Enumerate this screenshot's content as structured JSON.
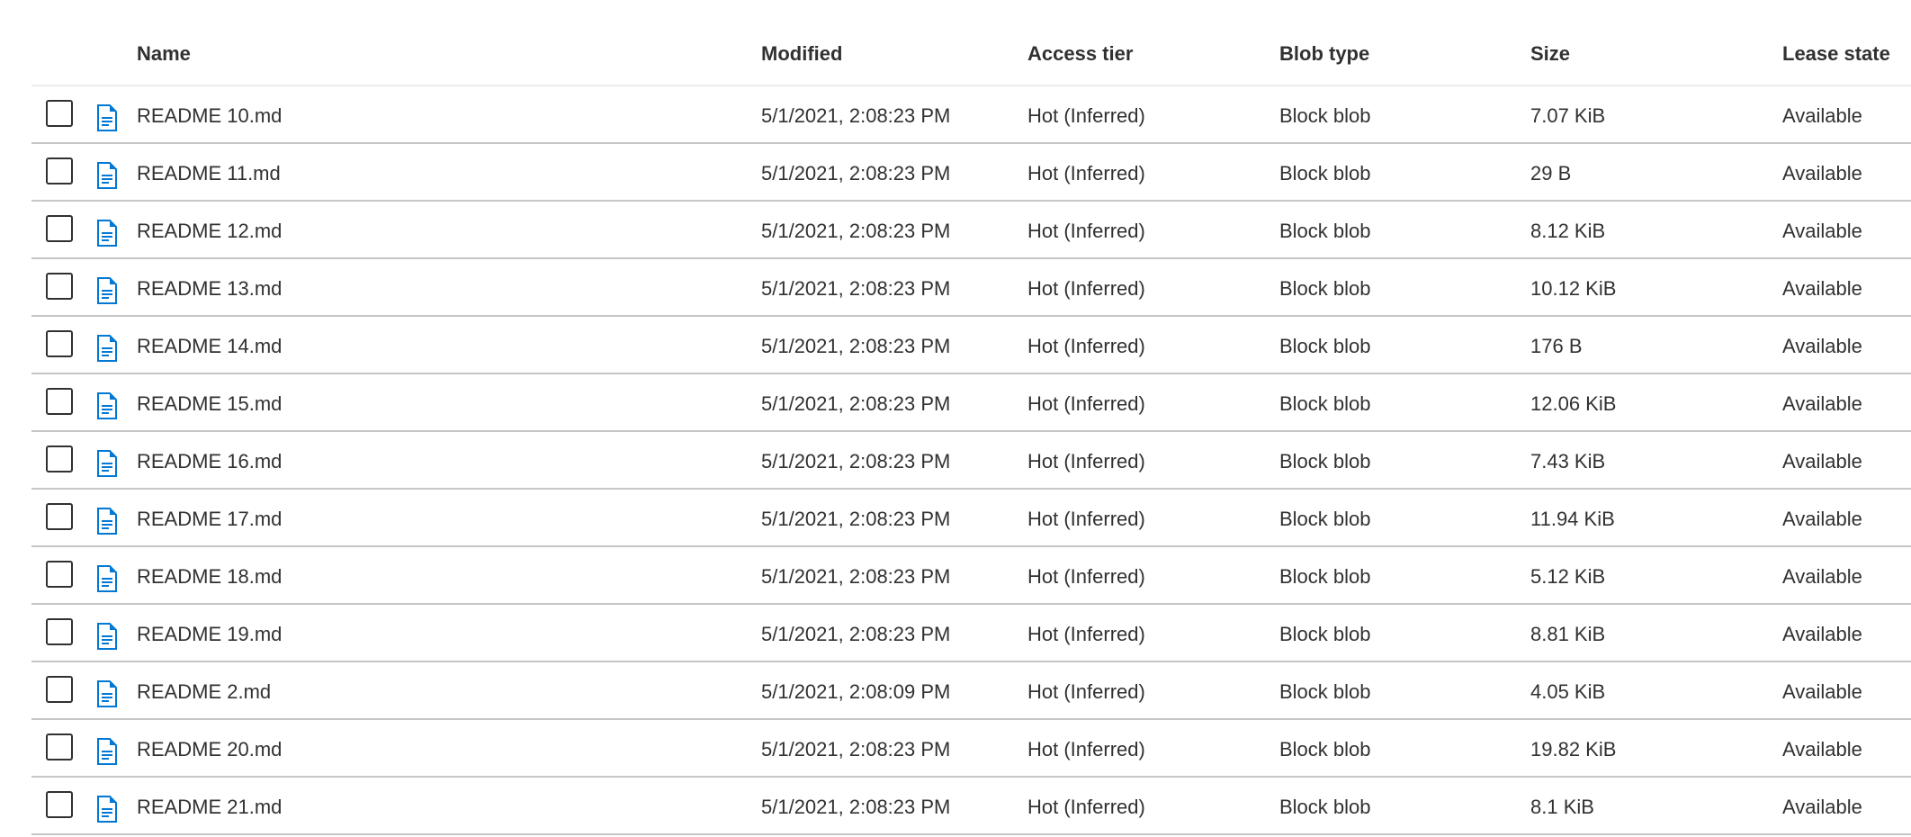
{
  "columns": {
    "name": "Name",
    "modified": "Modified",
    "access_tier": "Access tier",
    "blob_type": "Blob type",
    "size": "Size",
    "lease_state": "Lease state"
  },
  "accent_color": "#0078d4",
  "rows": [
    {
      "name": "README 10.md",
      "modified": "5/1/2021, 2:08:23 PM",
      "access_tier": "Hot (Inferred)",
      "blob_type": "Block blob",
      "size": "7.07 KiB",
      "lease_state": "Available"
    },
    {
      "name": "README 11.md",
      "modified": "5/1/2021, 2:08:23 PM",
      "access_tier": "Hot (Inferred)",
      "blob_type": "Block blob",
      "size": "29 B",
      "lease_state": "Available"
    },
    {
      "name": "README 12.md",
      "modified": "5/1/2021, 2:08:23 PM",
      "access_tier": "Hot (Inferred)",
      "blob_type": "Block blob",
      "size": "8.12 KiB",
      "lease_state": "Available"
    },
    {
      "name": "README 13.md",
      "modified": "5/1/2021, 2:08:23 PM",
      "access_tier": "Hot (Inferred)",
      "blob_type": "Block blob",
      "size": "10.12 KiB",
      "lease_state": "Available"
    },
    {
      "name": "README 14.md",
      "modified": "5/1/2021, 2:08:23 PM",
      "access_tier": "Hot (Inferred)",
      "blob_type": "Block blob",
      "size": "176 B",
      "lease_state": "Available"
    },
    {
      "name": "README 15.md",
      "modified": "5/1/2021, 2:08:23 PM",
      "access_tier": "Hot (Inferred)",
      "blob_type": "Block blob",
      "size": "12.06 KiB",
      "lease_state": "Available"
    },
    {
      "name": "README 16.md",
      "modified": "5/1/2021, 2:08:23 PM",
      "access_tier": "Hot (Inferred)",
      "blob_type": "Block blob",
      "size": "7.43 KiB",
      "lease_state": "Available"
    },
    {
      "name": "README 17.md",
      "modified": "5/1/2021, 2:08:23 PM",
      "access_tier": "Hot (Inferred)",
      "blob_type": "Block blob",
      "size": "11.94 KiB",
      "lease_state": "Available"
    },
    {
      "name": "README 18.md",
      "modified": "5/1/2021, 2:08:23 PM",
      "access_tier": "Hot (Inferred)",
      "blob_type": "Block blob",
      "size": "5.12 KiB",
      "lease_state": "Available"
    },
    {
      "name": "README 19.md",
      "modified": "5/1/2021, 2:08:23 PM",
      "access_tier": "Hot (Inferred)",
      "blob_type": "Block blob",
      "size": "8.81 KiB",
      "lease_state": "Available"
    },
    {
      "name": "README 2.md",
      "modified": "5/1/2021, 2:08:09 PM",
      "access_tier": "Hot (Inferred)",
      "blob_type": "Block blob",
      "size": "4.05 KiB",
      "lease_state": "Available"
    },
    {
      "name": "README 20.md",
      "modified": "5/1/2021, 2:08:23 PM",
      "access_tier": "Hot (Inferred)",
      "blob_type": "Block blob",
      "size": "19.82 KiB",
      "lease_state": "Available"
    },
    {
      "name": "README 21.md",
      "modified": "5/1/2021, 2:08:23 PM",
      "access_tier": "Hot (Inferred)",
      "blob_type": "Block blob",
      "size": "8.1 KiB",
      "lease_state": "Available"
    }
  ]
}
